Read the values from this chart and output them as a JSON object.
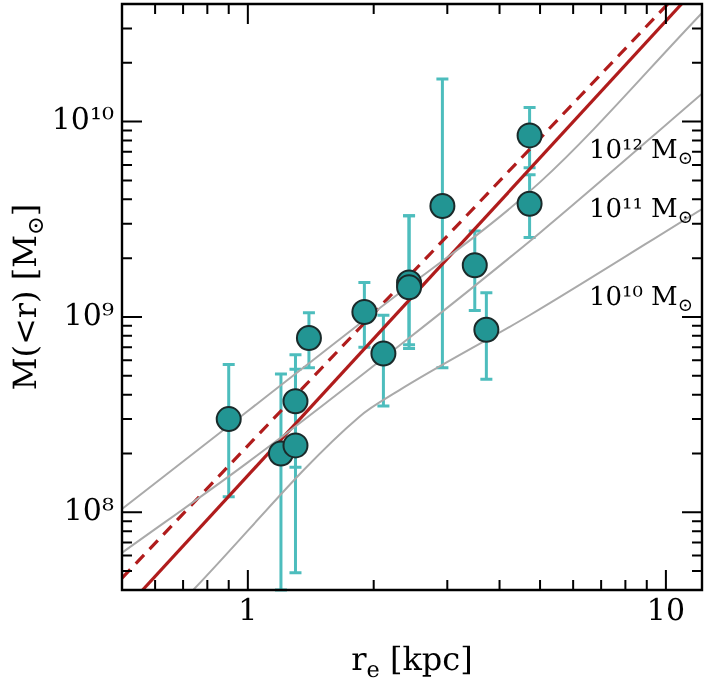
{
  "chart_data": {
    "type": "scatter",
    "xlabel": "r$_{e}$ [kpc]",
    "ylabel": "M(<r) [M$_{⊙}$]",
    "log": "xy",
    "xlim": [
      0.5,
      12.2
    ],
    "ylim": [
      40000000.0,
      40000000000.0
    ],
    "xticks": [
      {
        "value": 0.5,
        "label": null
      },
      {
        "value": 0.6,
        "label": null
      },
      {
        "value": 0.7,
        "label": null
      },
      {
        "value": 0.8,
        "label": null
      },
      {
        "value": 0.9,
        "label": null
      },
      1,
      {
        "value": 2,
        "label": null
      },
      {
        "value": 3,
        "label": null
      },
      {
        "value": 4,
        "label": null
      },
      {
        "value": 5,
        "label": null
      },
      {
        "value": 6,
        "label": null
      },
      {
        "value": 7,
        "label": null
      },
      {
        "value": 8,
        "label": null
      },
      {
        "value": 9,
        "label": null
      },
      10
    ],
    "yticks": [
      {
        "value": 50000000.0,
        "label": null
      },
      {
        "value": 60000000.0,
        "label": null
      },
      {
        "value": 70000000.0,
        "label": null
      },
      {
        "value": 80000000.0,
        "label": null
      },
      {
        "value": 90000000.0,
        "label": null
      },
      {
        "value": 100000000.0,
        "label": "10⁸"
      },
      {
        "value": 200000000.0,
        "label": null
      },
      {
        "value": 300000000.0,
        "label": null
      },
      {
        "value": 400000000.0,
        "label": null
      },
      {
        "value": 500000000.0,
        "label": null
      },
      {
        "value": 600000000.0,
        "label": null
      },
      {
        "value": 700000000.0,
        "label": null
      },
      {
        "value": 800000000.0,
        "label": null
      },
      {
        "value": 900000000.0,
        "label": null
      },
      {
        "value": 1000000000.0,
        "label": "10⁹"
      },
      {
        "value": 2000000000.0,
        "label": null
      },
      {
        "value": 3000000000.0,
        "label": null
      },
      {
        "value": 4000000000.0,
        "label": null
      },
      {
        "value": 5000000000.0,
        "label": null
      },
      {
        "value": 6000000000.0,
        "label": null
      },
      {
        "value": 7000000000.0,
        "label": null
      },
      {
        "value": 8000000000.0,
        "label": null
      },
      {
        "value": 9000000000.0,
        "label": null
      },
      {
        "value": 10000000000.0,
        "label": "10¹⁰"
      },
      {
        "value": 20000000000.0,
        "label": null
      },
      {
        "value": 30000000000.0,
        "label": null
      },
      {
        "value": 40000000000.0,
        "label": null
      }
    ],
    "series": [
      {
        "type": "line",
        "color": "#aaaaaa",
        "line_style": "solid",
        "x": [
          0.5,
          1,
          2,
          5,
          12.2
        ],
        "values": [
          104000000.0,
          330000000.0,
          1050000000.0,
          4900000000.0,
          36000000000.0
        ]
      },
      {
        "type": "line",
        "color": "#aaaaaa",
        "line_style": "solid",
        "x": [
          0.5,
          1,
          2.43,
          5,
          12.2
        ],
        "values": [
          62000000.0,
          180000000.0,
          780000000.0,
          2700000000.0,
          13900000000.0
        ]
      },
      {
        "type": "line",
        "color": "#aaaaaa",
        "line_style": "solid",
        "x": [
          0.74,
          1.84,
          2.29,
          4.72,
          12.2
        ],
        "values": [
          40000000.0,
          306000000.0,
          418000000.0,
          1020000000.0,
          3570000000.0
        ]
      },
      {
        "type": "line",
        "color": "#b01c1c",
        "line_style": "dashed",
        "x": [
          0.5,
          10.1
        ],
        "values": [
          46000000.0,
          40000000000.0
        ]
      },
      {
        "type": "line",
        "color": "#b01c1c",
        "line_style": "solid",
        "x": [
          0.56,
          10.9
        ],
        "values": [
          40000000.0,
          40000000000.0
        ]
      },
      {
        "type": "scatter",
        "color": "#229593",
        "marker": "circle",
        "x": [
          0.9,
          1.2,
          1.3,
          1.3,
          1.4,
          1.9,
          2.11,
          2.43,
          2.43,
          2.92,
          3.49,
          3.72,
          4.72,
          4.72
        ],
        "values": [
          300000000.0,
          200000000.0,
          220000000.0,
          370000000.0,
          780000000.0,
          1060000000.0,
          650000000.0,
          1500000000.0,
          1420000000.0,
          3700000000.0,
          1840000000.0,
          860000000.0,
          8500000000.0,
          3800000000.0
        ],
        "errors": [
          [
            120000000.0,
            570000000.0
          ],
          [
            40000000.0,
            510000000.0
          ],
          [
            49000000.0,
            540000000.0
          ],
          [
            170000000.0,
            640000000.0
          ],
          [
            550000000.0,
            1050000000.0
          ],
          [
            700000000.0,
            1500000000.0
          ],
          [
            350000000.0,
            1020000000.0
          ],
          [
            690000000.0,
            3300000000.0
          ],
          [
            720000000.0,
            3300000000.0
          ],
          [
            550000000.0,
            16500000000.0
          ],
          [
            1080000000.0,
            2750000000.0
          ],
          [
            480000000.0,
            1330000000.0
          ],
          [
            5800000000.0,
            11800000000.0
          ],
          [
            2550000000.0,
            5350000000.0
          ]
        ]
      }
    ],
    "annotations": [
      "10¹² M$_{⊙}$",
      "10¹¹ M$_{⊙}$",
      "10¹⁰ M$_{⊙}$"
    ]
  }
}
